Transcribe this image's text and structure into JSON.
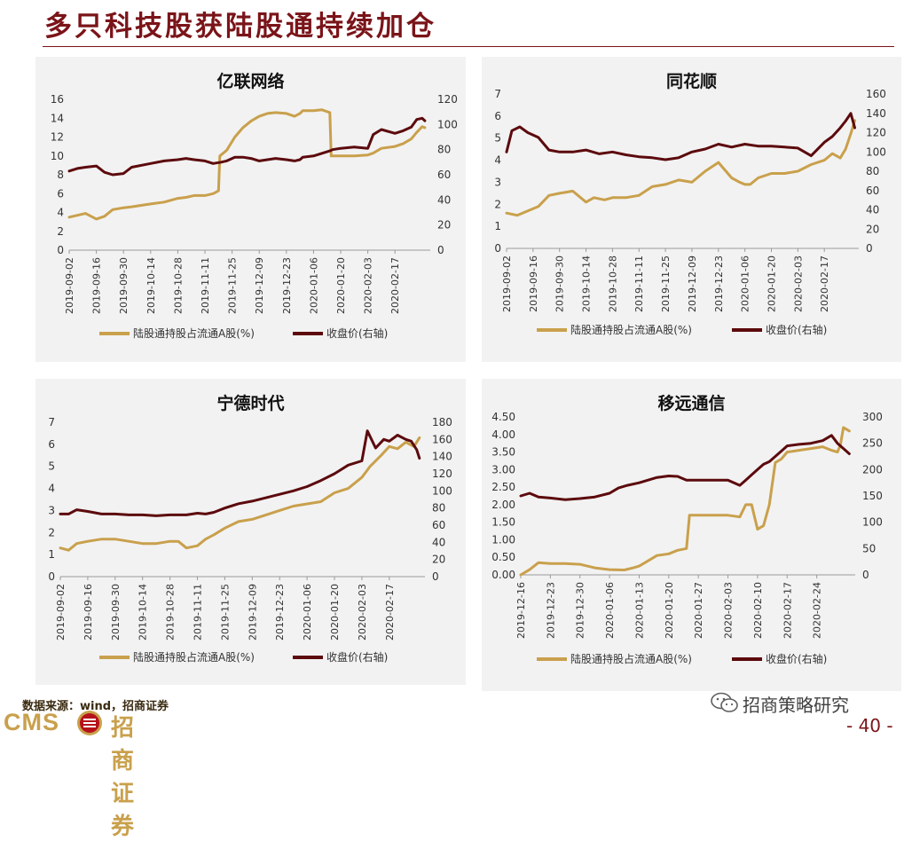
{
  "page": {
    "title": "多只科技股获陆股通持续加仓",
    "source": "数据来源：wind，招商证券",
    "logo_cms": "CMS",
    "logo_cn": "招商证券",
    "wechat": "招商策略研究",
    "page_number": "- 40 -",
    "colors": {
      "title": "#7a1419",
      "holding": "#c9a04c",
      "price": "#5c0a0d",
      "panel_bg": "#f2f2f2"
    }
  },
  "chart_data": [
    {
      "type": "line",
      "title": "亿联网络",
      "x_ticks": [
        "2019-09-02",
        "2019-09-16",
        "2019-09-30",
        "2019-10-14",
        "2019-10-28",
        "2019-11-11",
        "2019-11-25",
        "2019-12-09",
        "2019-12-23",
        "2020-01-06",
        "2020-01-20",
        "2020-02-03",
        "2020-02-17"
      ],
      "x_range": [
        0,
        13.3
      ],
      "left_axis": {
        "ticks": [
          "0",
          "2",
          "4",
          "6",
          "8",
          "10",
          "12",
          "14",
          "16"
        ],
        "range": [
          0,
          16
        ]
      },
      "right_axis": {
        "ticks": [
          "0",
          "20",
          "40",
          "60",
          "80",
          "100",
          "120"
        ],
        "range": [
          0,
          120
        ]
      },
      "series": [
        {
          "name": "陆股通持股占流通A股(%)",
          "axis": "left",
          "color": "#c9a04c",
          "x": [
            0,
            0.3,
            0.6,
            1.0,
            1.3,
            1.6,
            2.0,
            2.3,
            3.0,
            3.5,
            4.0,
            4.3,
            4.6,
            5.0,
            5.3,
            5.5,
            5.55,
            5.8,
            6.1,
            6.4,
            6.7,
            7.0,
            7.3,
            7.6,
            8.0,
            8.3,
            8.5,
            8.6,
            9.0,
            9.3,
            9.6,
            9.65,
            10.0,
            10.5,
            11.0,
            11.2,
            11.5,
            12.0,
            12.3,
            12.6,
            12.8,
            13.0,
            13.1
          ],
          "y": [
            3.5,
            3.7,
            3.9,
            3.3,
            3.6,
            4.3,
            4.5,
            4.6,
            4.9,
            5.1,
            5.5,
            5.6,
            5.8,
            5.8,
            6.0,
            6.3,
            10.0,
            10.6,
            12.0,
            13.0,
            13.7,
            14.2,
            14.5,
            14.6,
            14.5,
            14.2,
            14.5,
            14.8,
            14.8,
            14.9,
            14.6,
            10.0,
            10.0,
            10.0,
            10.1,
            10.3,
            10.8,
            11.0,
            11.3,
            11.8,
            12.5,
            13.1,
            13.0
          ]
        },
        {
          "name": "收盘价(右轴)",
          "axis": "right",
          "color": "#5c0a0d",
          "x": [
            0,
            0.3,
            0.6,
            1.0,
            1.3,
            1.6,
            2.0,
            2.3,
            3.0,
            3.5,
            4.0,
            4.3,
            4.6,
            5.0,
            5.3,
            5.6,
            5.8,
            6.1,
            6.4,
            6.7,
            7.0,
            7.3,
            7.6,
            8.0,
            8.3,
            8.5,
            8.6,
            9.0,
            9.3,
            9.6,
            9.7,
            10.0,
            10.5,
            11.0,
            11.2,
            11.5,
            12.0,
            12.3,
            12.6,
            12.8,
            13.0,
            13.1
          ],
          "y": [
            63,
            65,
            66,
            67,
            62,
            60,
            61,
            66,
            69,
            71,
            72,
            73,
            72,
            71,
            69,
            70,
            71,
            74,
            74,
            73,
            71,
            72,
            73,
            72,
            71,
            72,
            74,
            75,
            77,
            79,
            80,
            81,
            82,
            81,
            92,
            96,
            93,
            95,
            98,
            104,
            105,
            103
          ]
        }
      ],
      "legend": [
        "陆股通持股占流通A股(%)",
        "收盘价(右轴)"
      ]
    },
    {
      "type": "line",
      "title": "同花顺",
      "x_ticks": [
        "2019-09-02",
        "2019-09-16",
        "2019-09-30",
        "2019-10-14",
        "2019-10-28",
        "2019-11-11",
        "2019-11-25",
        "2019-12-09",
        "2019-12-23",
        "2020-01-06",
        "2020-01-20",
        "2020-02-03",
        "2020-02-17"
      ],
      "x_range": [
        0,
        13.3
      ],
      "left_axis": {
        "ticks": [
          "0",
          "1",
          "2",
          "3",
          "4",
          "5",
          "6",
          "7"
        ],
        "range": [
          0,
          7
        ]
      },
      "right_axis": {
        "ticks": [
          "0",
          "20",
          "40",
          "60",
          "80",
          "100",
          "120",
          "140",
          "160"
        ],
        "range": [
          0,
          160
        ]
      },
      "series": [
        {
          "name": "陆股通持股占流通A股(%)",
          "axis": "left",
          "color": "#c9a04c",
          "x": [
            0,
            0.4,
            0.8,
            1.2,
            1.6,
            2.0,
            2.5,
            3.0,
            3.3,
            3.7,
            4.0,
            4.5,
            5.0,
            5.5,
            6.0,
            6.5,
            7.0,
            7.5,
            8.0,
            8.5,
            8.8,
            9.0,
            9.2,
            9.5,
            10.0,
            10.5,
            11.0,
            11.5,
            12.0,
            12.3,
            12.6,
            12.8,
            13.0,
            13.15
          ],
          "y": [
            1.6,
            1.5,
            1.7,
            1.9,
            2.4,
            2.5,
            2.6,
            2.1,
            2.3,
            2.2,
            2.3,
            2.3,
            2.4,
            2.8,
            2.9,
            3.1,
            3.0,
            3.5,
            3.9,
            3.2,
            3.0,
            2.9,
            2.9,
            3.2,
            3.4,
            3.4,
            3.5,
            3.8,
            4.0,
            4.3,
            4.1,
            4.5,
            5.2,
            5.8
          ]
        },
        {
          "name": "收盘价(右轴)",
          "axis": "right",
          "color": "#5c0a0d",
          "x": [
            0,
            0.2,
            0.5,
            0.8,
            1.2,
            1.6,
            2.0,
            2.5,
            3.0,
            3.5,
            4.0,
            4.5,
            5.0,
            5.5,
            6.0,
            6.5,
            7.0,
            7.5,
            8.0,
            8.5,
            9.0,
            9.5,
            10.0,
            10.5,
            11.0,
            11.5,
            12.0,
            12.3,
            12.6,
            12.8,
            13.0,
            13.15
          ],
          "y": [
            100,
            122,
            126,
            120,
            115,
            102,
            100,
            100,
            102,
            98,
            100,
            97,
            95,
            94,
            92,
            94,
            100,
            103,
            108,
            105,
            108,
            106,
            106,
            105,
            104,
            96,
            110,
            116,
            125,
            132,
            140,
            125
          ]
        }
      ],
      "legend": [
        "陆股通持股占流通A股(%)",
        "收盘价(右轴)"
      ]
    },
    {
      "type": "line",
      "title": "宁德时代",
      "x_ticks": [
        "2019-09-02",
        "2019-09-16",
        "2019-09-30",
        "2019-10-14",
        "2019-10-28",
        "2019-11-11",
        "2019-11-25",
        "2019-12-09",
        "2019-12-23",
        "2020-01-06",
        "2020-01-20",
        "2020-02-03",
        "2020-02-17"
      ],
      "x_range": [
        0,
        13.3
      ],
      "left_axis": {
        "ticks": [
          "0",
          "1",
          "2",
          "3",
          "4",
          "5",
          "6",
          "7"
        ],
        "range": [
          0,
          7
        ]
      },
      "right_axis": {
        "ticks": [
          "0",
          "20",
          "40",
          "60",
          "80",
          "100",
          "120",
          "140",
          "160",
          "180"
        ],
        "range": [
          0,
          180
        ]
      },
      "series": [
        {
          "name": "陆股通持股占流通A股(%)",
          "axis": "left",
          "color": "#c9a04c",
          "x": [
            0,
            0.3,
            0.6,
            1.0,
            1.5,
            2.0,
            2.5,
            3.0,
            3.5,
            4.0,
            4.3,
            4.6,
            5.0,
            5.3,
            5.6,
            6.0,
            6.5,
            7.0,
            7.5,
            8.0,
            8.5,
            9.0,
            9.5,
            10.0,
            10.5,
            11.0,
            11.3,
            11.7,
            12.0,
            12.3,
            12.6,
            12.9,
            13.1
          ],
          "y": [
            1.3,
            1.2,
            1.5,
            1.6,
            1.7,
            1.7,
            1.6,
            1.5,
            1.5,
            1.6,
            1.6,
            1.3,
            1.4,
            1.7,
            1.9,
            2.2,
            2.5,
            2.6,
            2.8,
            3.0,
            3.2,
            3.3,
            3.4,
            3.8,
            4.0,
            4.5,
            5.0,
            5.5,
            5.9,
            5.8,
            6.1,
            5.9,
            6.3
          ]
        },
        {
          "name": "收盘价(右轴)",
          "axis": "right",
          "color": "#5c0a0d",
          "x": [
            0,
            0.3,
            0.6,
            1.0,
            1.5,
            2.0,
            2.5,
            3.0,
            3.5,
            4.0,
            4.3,
            4.6,
            5.0,
            5.3,
            5.6,
            6.0,
            6.5,
            7.0,
            7.5,
            8.0,
            8.5,
            9.0,
            9.5,
            10.0,
            10.5,
            11.0,
            11.2,
            11.5,
            11.8,
            12.0,
            12.3,
            12.6,
            12.8,
            13.0,
            13.1
          ],
          "y": [
            73,
            73,
            78,
            76,
            73,
            73,
            72,
            72,
            71,
            72,
            72,
            72,
            74,
            73,
            75,
            80,
            85,
            88,
            92,
            96,
            100,
            105,
            112,
            120,
            130,
            135,
            170,
            150,
            160,
            158,
            165,
            160,
            158,
            148,
            138
          ]
        }
      ],
      "legend": [
        "陆股通持股占流通A股(%)",
        "收盘价(右轴)"
      ]
    },
    {
      "type": "line",
      "title": "移远通信",
      "x_ticks": [
        "2019-12-16",
        "2019-12-23",
        "2019-12-30",
        "2020-01-06",
        "2020-01-13",
        "2020-01-20",
        "2020-01-27",
        "2020-02-03",
        "2020-02-10",
        "2020-02-17",
        "2020-02-24"
      ],
      "x_range": [
        0,
        11.3
      ],
      "left_axis": {
        "ticks": [
          "0.00",
          "0.50",
          "1.00",
          "1.50",
          "2.00",
          "2.50",
          "3.00",
          "3.50",
          "4.00",
          "4.50"
        ],
        "range": [
          0,
          4.5
        ]
      },
      "right_axis": {
        "ticks": [
          "0",
          "50",
          "100",
          "150",
          "200",
          "250",
          "300"
        ],
        "range": [
          0,
          300
        ]
      },
      "series": [
        {
          "name": "陆股通持股占流通A股(%)",
          "axis": "left",
          "color": "#c9a04c",
          "x": [
            0,
            0.3,
            0.6,
            1.0,
            1.5,
            2.0,
            2.5,
            3.0,
            3.5,
            3.8,
            4.0,
            4.3,
            4.6,
            5.0,
            5.3,
            5.6,
            5.7,
            6.0,
            6.5,
            7.0,
            7.4,
            7.6,
            7.8,
            8.0,
            8.2,
            8.4,
            8.6,
            8.8,
            9.0,
            9.4,
            9.8,
            10.2,
            10.5,
            10.7,
            10.8,
            10.9,
            11.1
          ],
          "y": [
            0,
            0.15,
            0.35,
            0.32,
            0.32,
            0.3,
            0.2,
            0.15,
            0.14,
            0.2,
            0.25,
            0.4,
            0.55,
            0.6,
            0.7,
            0.75,
            1.7,
            1.7,
            1.7,
            1.7,
            1.65,
            2.0,
            2.0,
            1.3,
            1.4,
            2.0,
            3.2,
            3.3,
            3.5,
            3.55,
            3.6,
            3.65,
            3.55,
            3.5,
            3.7,
            4.2,
            4.1
          ]
        },
        {
          "name": "收盘价(右轴)",
          "axis": "right",
          "color": "#5c0a0d",
          "x": [
            0,
            0.3,
            0.6,
            1.0,
            1.5,
            2.0,
            2.5,
            3.0,
            3.3,
            3.6,
            4.0,
            4.3,
            4.6,
            5.0,
            5.3,
            5.6,
            6.0,
            6.5,
            7.0,
            7.4,
            7.6,
            7.8,
            8.0,
            8.2,
            8.4,
            8.6,
            8.8,
            9.0,
            9.4,
            9.8,
            10.2,
            10.5,
            10.7,
            10.9,
            11.1
          ],
          "y": [
            150,
            155,
            148,
            146,
            143,
            145,
            148,
            155,
            165,
            170,
            175,
            180,
            185,
            188,
            187,
            180,
            180,
            180,
            180,
            170,
            180,
            190,
            200,
            210,
            215,
            225,
            235,
            245,
            248,
            250,
            255,
            265,
            250,
            240,
            230
          ]
        }
      ],
      "legend": [
        "陆股通持股占流通A股(%)",
        "收盘价(右轴)"
      ]
    }
  ]
}
